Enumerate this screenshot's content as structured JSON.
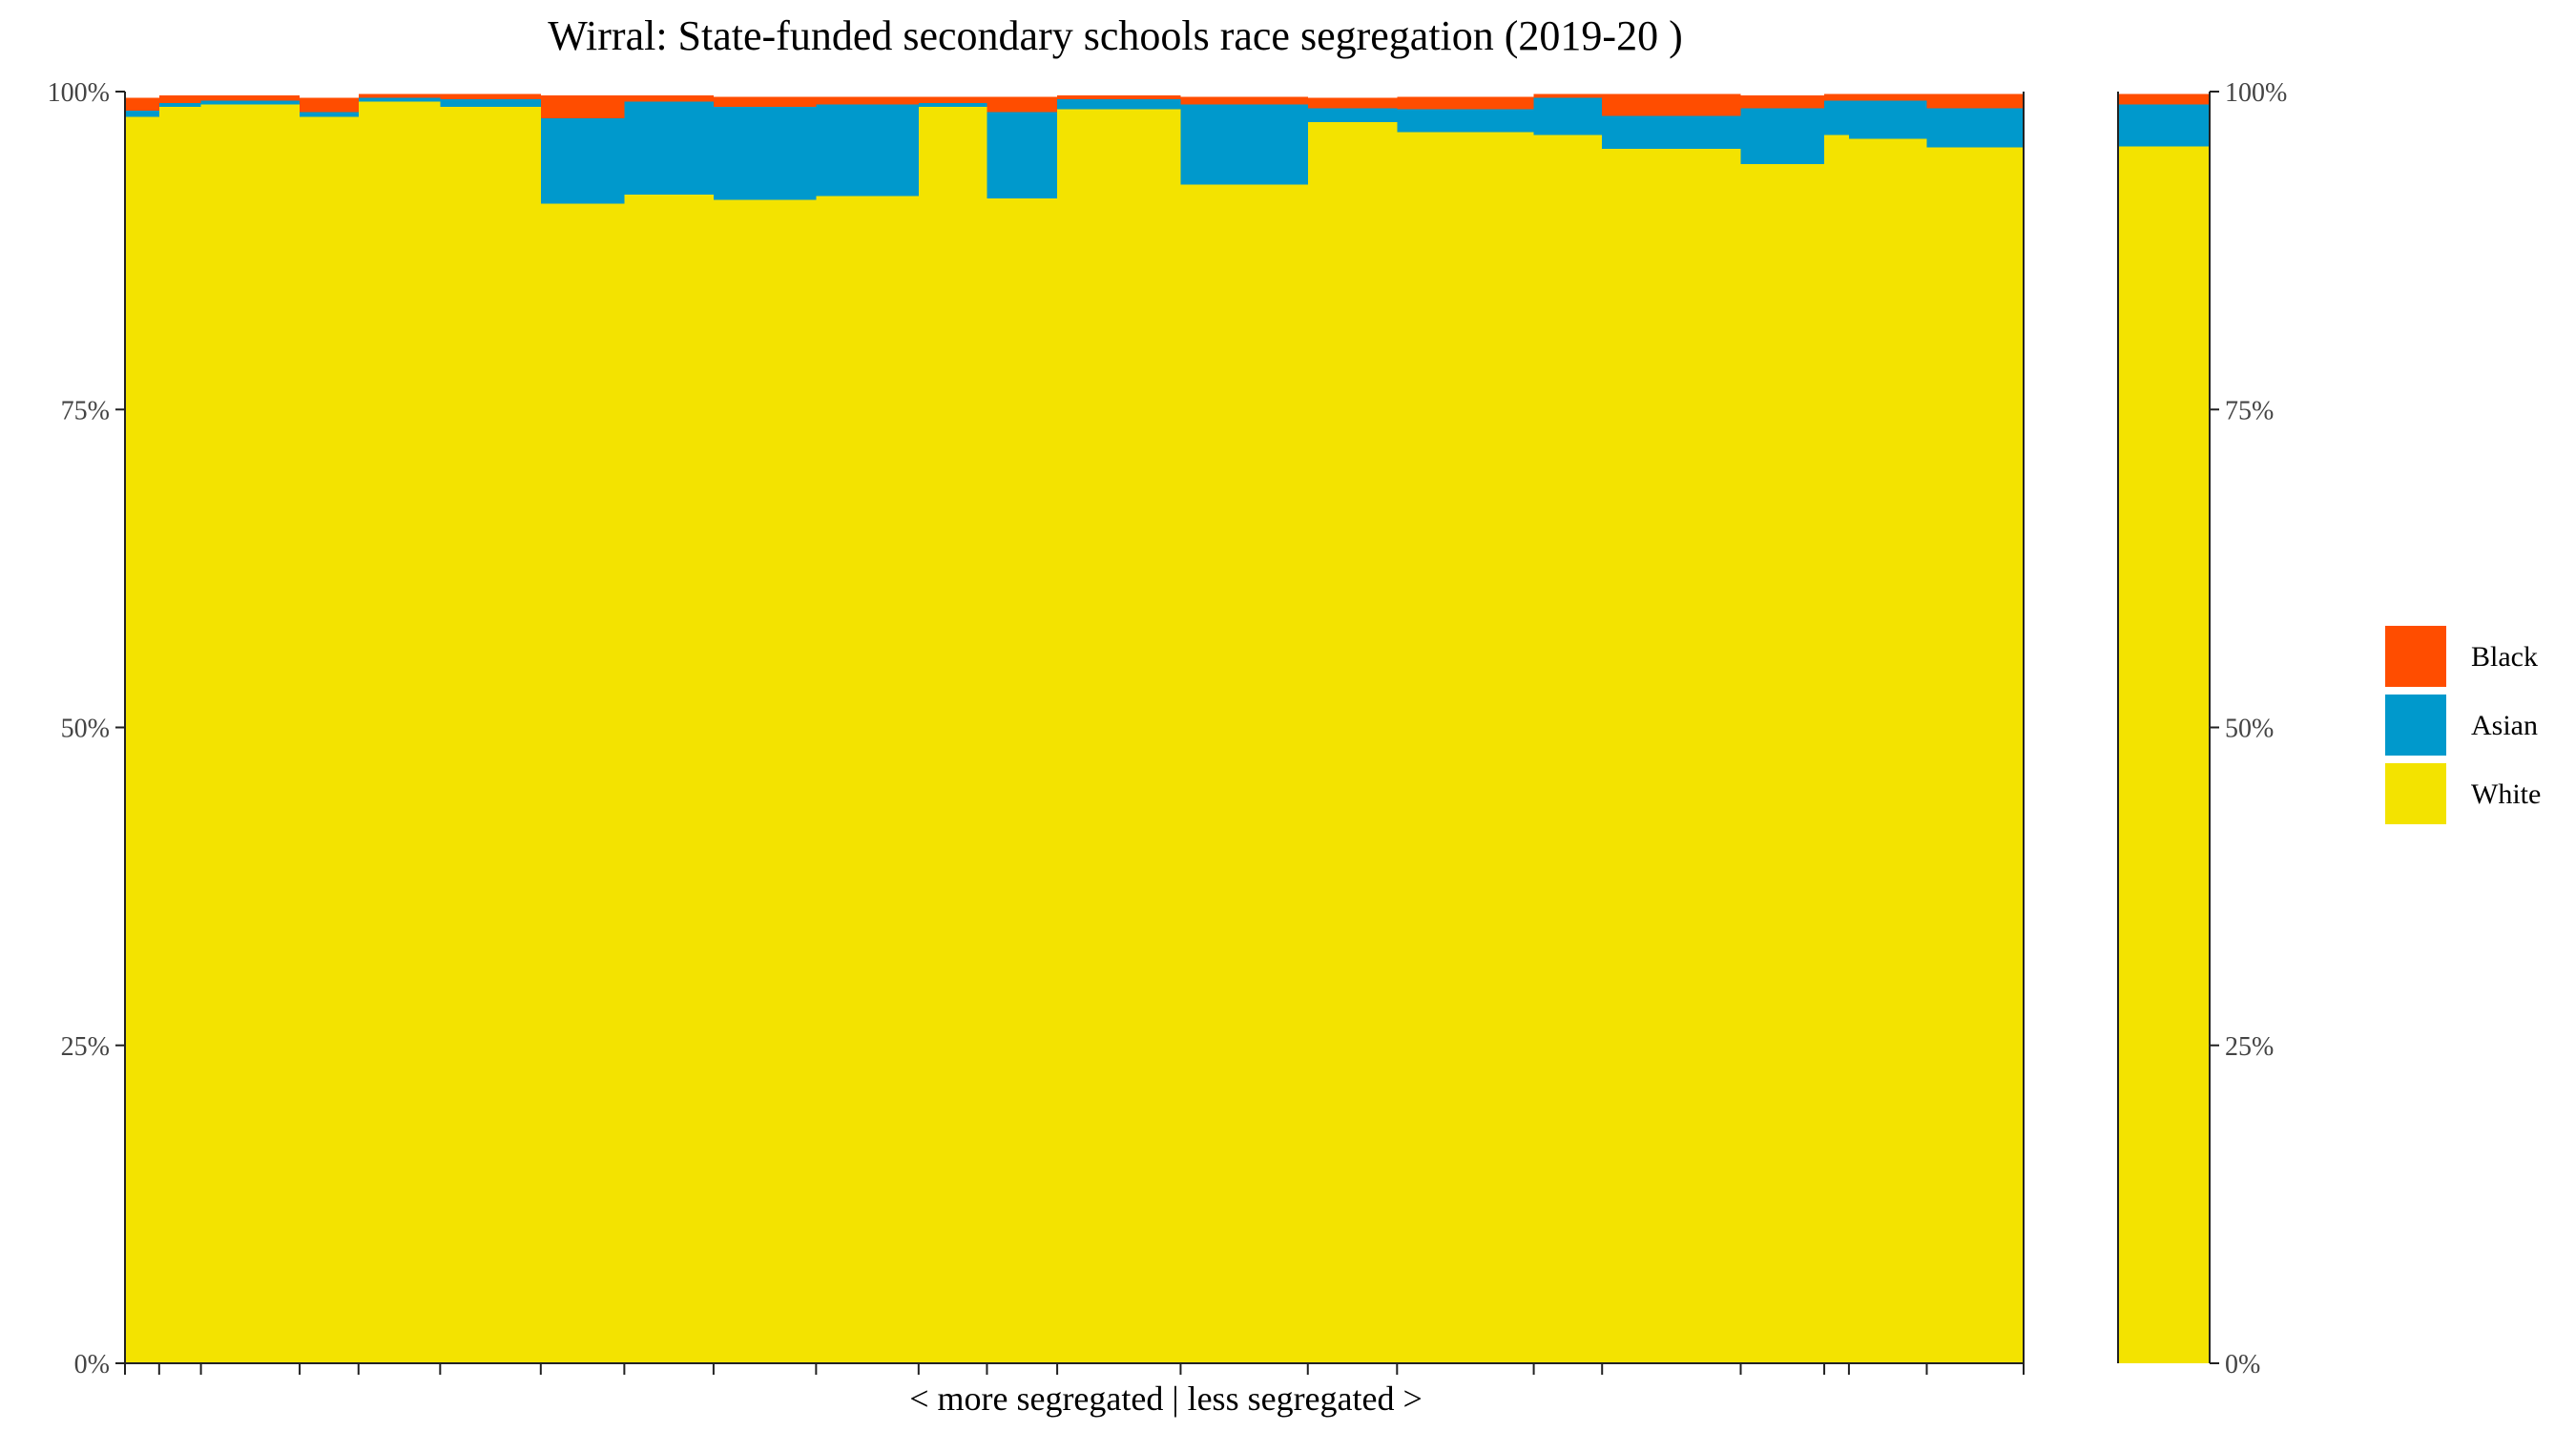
{
  "chart_data": {
    "type": "bar",
    "subtype": "stacked-variable-width",
    "title": "Wirral: State-funded secondary schools race segregation (2019-20 )",
    "xlabel": "< more segregated | less segregated >",
    "ylabel": "",
    "ylim": [
      0,
      100
    ],
    "y_ticks": [
      "0%",
      "25%",
      "50%",
      "75%",
      "100%"
    ],
    "y_tick_values": [
      0,
      25,
      50,
      75,
      100
    ],
    "grid": false,
    "legend_position": "right",
    "series_order": [
      "White",
      "Asian",
      "Black"
    ],
    "legend_order": [
      "Black",
      "Asian",
      "White"
    ],
    "colors": {
      "White": "#F3E300",
      "Asian": "#0099CC",
      "Black": "#FF4D00"
    },
    "schools": [
      {
        "start": 0.0,
        "end": 1.8,
        "White": 98.0,
        "Asian": 0.5,
        "Black": 1.0
      },
      {
        "start": 1.8,
        "end": 4.0,
        "White": 98.8,
        "Asian": 0.3,
        "Black": 0.6
      },
      {
        "start": 4.0,
        "end": 9.2,
        "White": 99.0,
        "Asian": 0.3,
        "Black": 0.4
      },
      {
        "start": 9.2,
        "end": 12.3,
        "White": 98.0,
        "Asian": 0.4,
        "Black": 1.1
      },
      {
        "start": 12.3,
        "end": 16.6,
        "White": 99.2,
        "Asian": 0.3,
        "Black": 0.3
      },
      {
        "start": 16.6,
        "end": 21.9,
        "White": 98.8,
        "Asian": 0.6,
        "Black": 0.4
      },
      {
        "start": 21.9,
        "end": 26.3,
        "White": 91.2,
        "Asian": 6.7,
        "Black": 1.8
      },
      {
        "start": 26.3,
        "end": 31.0,
        "White": 91.9,
        "Asian": 7.3,
        "Black": 0.5
      },
      {
        "start": 31.0,
        "end": 36.4,
        "White": 91.5,
        "Asian": 7.3,
        "Black": 0.8
      },
      {
        "start": 36.4,
        "end": 41.8,
        "White": 91.8,
        "Asian": 7.2,
        "Black": 0.6
      },
      {
        "start": 41.8,
        "end": 45.4,
        "White": 98.8,
        "Asian": 0.3,
        "Black": 0.5
      },
      {
        "start": 45.4,
        "end": 49.1,
        "White": 91.6,
        "Asian": 6.8,
        "Black": 1.2
      },
      {
        "start": 49.1,
        "end": 55.6,
        "White": 98.6,
        "Asian": 0.8,
        "Black": 0.3
      },
      {
        "start": 55.6,
        "end": 62.3,
        "White": 92.7,
        "Asian": 6.3,
        "Black": 0.6
      },
      {
        "start": 62.3,
        "end": 67.0,
        "White": 97.6,
        "Asian": 1.1,
        "Black": 0.8
      },
      {
        "start": 67.0,
        "end": 74.2,
        "White": 96.8,
        "Asian": 1.8,
        "Black": 1.0
      },
      {
        "start": 74.2,
        "end": 77.8,
        "White": 96.6,
        "Asian": 2.9,
        "Black": 0.3
      },
      {
        "start": 77.8,
        "end": 85.1,
        "White": 95.5,
        "Asian": 2.6,
        "Black": 1.7
      },
      {
        "start": 85.1,
        "end": 89.5,
        "White": 94.3,
        "Asian": 4.4,
        "Black": 1.0
      },
      {
        "start": 89.5,
        "end": 90.8,
        "White": 96.6,
        "Asian": 2.7,
        "Black": 0.5
      },
      {
        "start": 90.8,
        "end": 94.9,
        "White": 96.3,
        "Asian": 3.0,
        "Black": 0.5
      },
      {
        "start": 94.9,
        "end": 100.0,
        "White": 95.6,
        "Asian": 3.1,
        "Black": 1.1
      }
    ],
    "overall": {
      "White": 95.7,
      "Asian": 3.3,
      "Black": 0.8
    }
  }
}
